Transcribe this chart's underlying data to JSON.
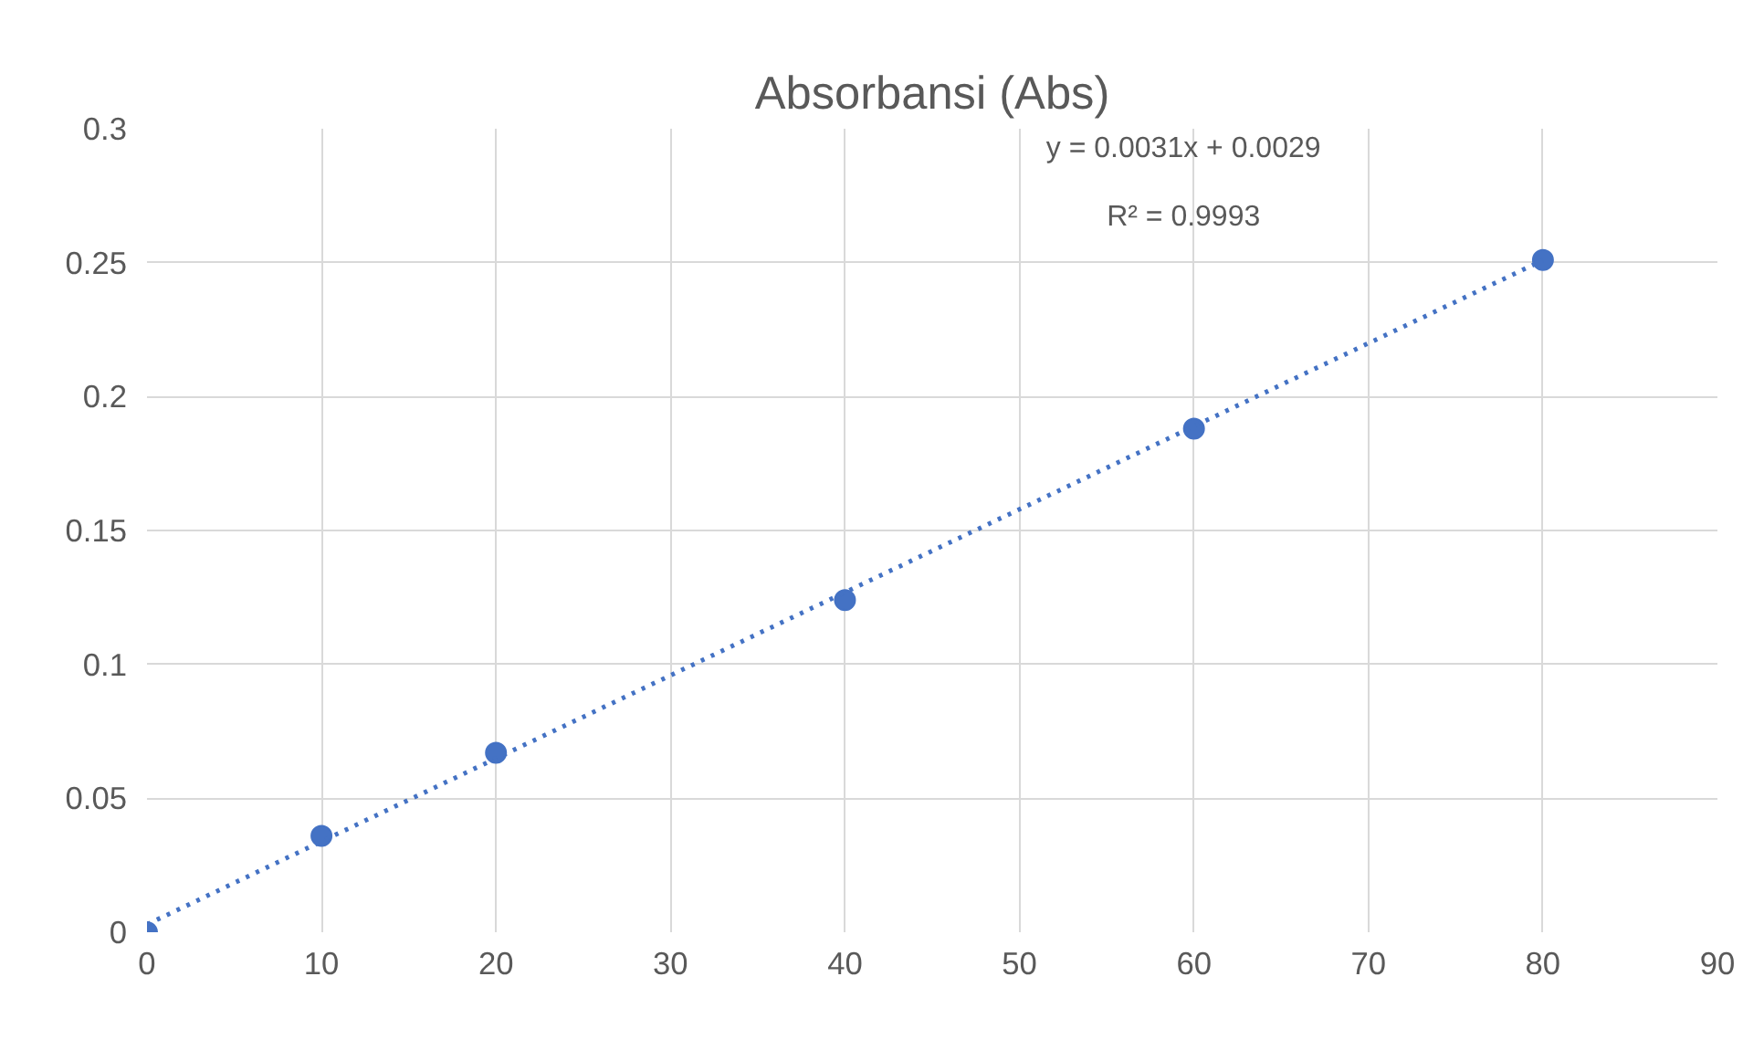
{
  "chart_data": {
    "type": "scatter",
    "title": "Absorbansi (Abs)",
    "series": [
      {
        "type": "scatter",
        "color": "#4472c4",
        "x": [
          0,
          10,
          20,
          40,
          60,
          80
        ],
        "values": [
          0,
          0.036,
          0.067,
          0.124,
          0.188,
          0.251
        ],
        "marker": "circle"
      },
      {
        "type": "line",
        "color": "#4472c4",
        "x": [
          0,
          80
        ],
        "values": [
          0.0029,
          0.2509
        ],
        "line_style": "dotted"
      }
    ],
    "xlim": [
      0,
      90
    ],
    "xticks": [
      0,
      10,
      20,
      30,
      40,
      50,
      60,
      70,
      80,
      90
    ],
    "ylim": [
      0,
      0.3
    ],
    "yticks": [
      {
        "value": 0,
        "label": "0"
      },
      0.05,
      0.1,
      0.15,
      0.2,
      0.25,
      0.3
    ],
    "grid": true,
    "annotations": [
      "y = 0.0031x + 0.0029",
      "R² = 0.9993"
    ]
  }
}
